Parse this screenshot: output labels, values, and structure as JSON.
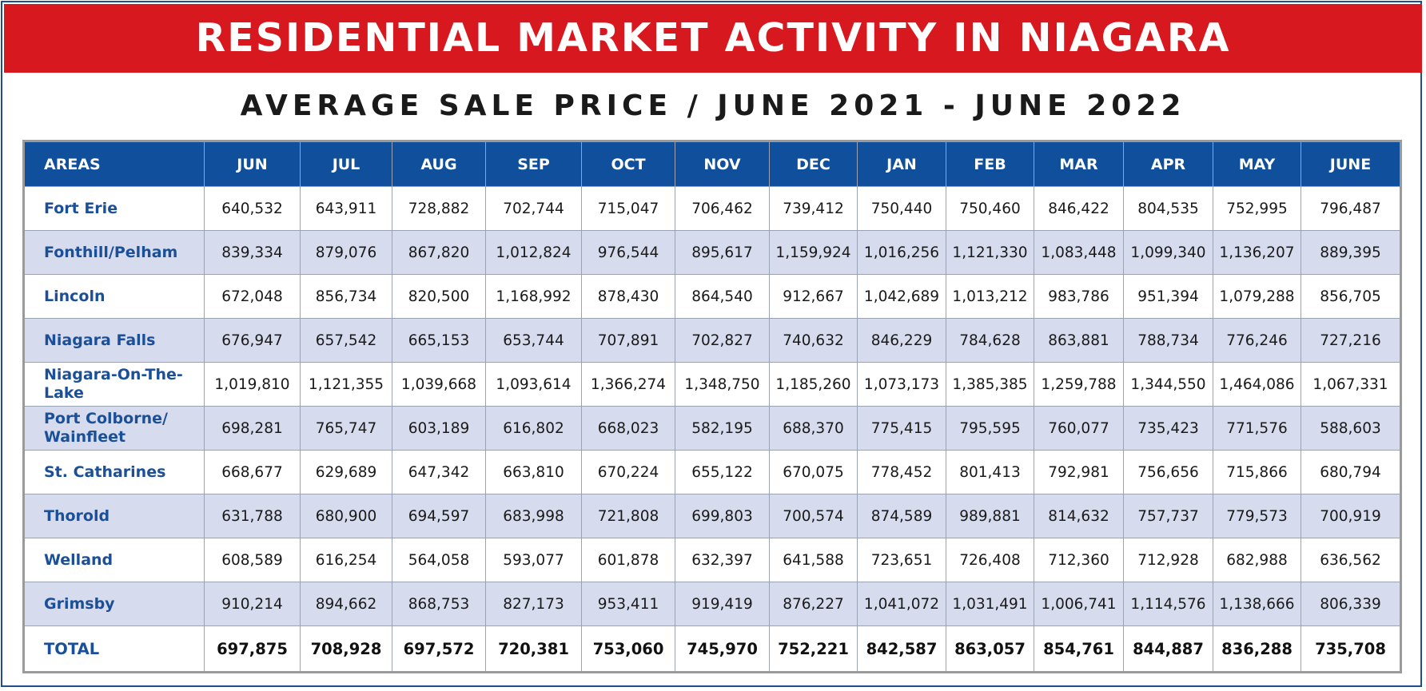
{
  "title": "RESIDENTIAL MARKET ACTIVITY IN NIAGARA",
  "subtitle": "AVERAGE SALE PRICE / JUNE 2021 - JUNE 2022",
  "colors": {
    "banner": "#d7191f",
    "header": "#0f4f9b",
    "area_text": "#1b4f98",
    "alt_row": "#d6dced"
  },
  "chart_data": {
    "type": "table",
    "title": "RESIDENTIAL MARKET ACTIVITY IN NIAGARA",
    "subtitle": "AVERAGE SALE PRICE / JUNE 2021 - JUNE 2022",
    "columns": [
      "AREAS",
      "JUN",
      "JUL",
      "AUG",
      "SEP",
      "OCT",
      "NOV",
      "DEC",
      "JAN",
      "FEB",
      "MAR",
      "APR",
      "MAY",
      "JUNE"
    ],
    "rows": [
      {
        "area": "Fort Erie",
        "values": [
          "640,532",
          "643,911",
          "728,882",
          "702,744",
          "715,047",
          "706,462",
          "739,412",
          "750,440",
          "750,460",
          "846,422",
          "804,535",
          "752,995",
          "796,487"
        ]
      },
      {
        "area": "Fonthill/Pelham",
        "values": [
          "839,334",
          "879,076",
          "867,820",
          "1,012,824",
          "976,544",
          "895,617",
          "1,159,924",
          "1,016,256",
          "1,121,330",
          "1,083,448",
          "1,099,340",
          "1,136,207",
          "889,395"
        ]
      },
      {
        "area": "Lincoln",
        "values": [
          "672,048",
          "856,734",
          "820,500",
          "1,168,992",
          "878,430",
          "864,540",
          "912,667",
          "1,042,689",
          "1,013,212",
          "983,786",
          "951,394",
          "1,079,288",
          "856,705"
        ]
      },
      {
        "area": "Niagara Falls",
        "values": [
          "676,947",
          "657,542",
          "665,153",
          "653,744",
          "707,891",
          "702,827",
          "740,632",
          "846,229",
          "784,628",
          "863,881",
          "788,734",
          "776,246",
          "727,216"
        ]
      },
      {
        "area": "Niagara-On-The-Lake",
        "values": [
          "1,019,810",
          "1,121,355",
          "1,039,668",
          "1,093,614",
          "1,366,274",
          "1,348,750",
          "1,185,260",
          "1,073,173",
          "1,385,385",
          "1,259,788",
          "1,344,550",
          "1,464,086",
          "1,067,331"
        ]
      },
      {
        "area": "Port Colborne/ Wainfleet",
        "values": [
          "698,281",
          "765,747",
          "603,189",
          "616,802",
          "668,023",
          "582,195",
          "688,370",
          "775,415",
          "795,595",
          "760,077",
          "735,423",
          "771,576",
          "588,603"
        ]
      },
      {
        "area": "St. Catharines",
        "values": [
          "668,677",
          "629,689",
          "647,342",
          "663,810",
          "670,224",
          "655,122",
          "670,075",
          "778,452",
          "801,413",
          "792,981",
          "756,656",
          "715,866",
          "680,794"
        ]
      },
      {
        "area": "Thorold",
        "values": [
          "631,788",
          "680,900",
          "694,597",
          "683,998",
          "721,808",
          "699,803",
          "700,574",
          "874,589",
          "989,881",
          "814,632",
          "757,737",
          "779,573",
          "700,919"
        ]
      },
      {
        "area": "Welland",
        "values": [
          "608,589",
          "616,254",
          "564,058",
          "593,077",
          "601,878",
          "632,397",
          "641,588",
          "723,651",
          "726,408",
          "712,360",
          "712,928",
          "682,988",
          "636,562"
        ]
      },
      {
        "area": "Grimsby",
        "values": [
          "910,214",
          "894,662",
          "868,753",
          "827,173",
          "953,411",
          "919,419",
          "876,227",
          "1,041,072",
          "1,031,491",
          "1,006,741",
          "1,114,576",
          "1,138,666",
          "806,339"
        ]
      }
    ],
    "total": {
      "area": "TOTAL",
      "values": [
        "697,875",
        "708,928",
        "697,572",
        "720,381",
        "753,060",
        "745,970",
        "752,221",
        "842,587",
        "863,057",
        "854,761",
        "844,887",
        "836,288",
        "735,708"
      ]
    }
  }
}
